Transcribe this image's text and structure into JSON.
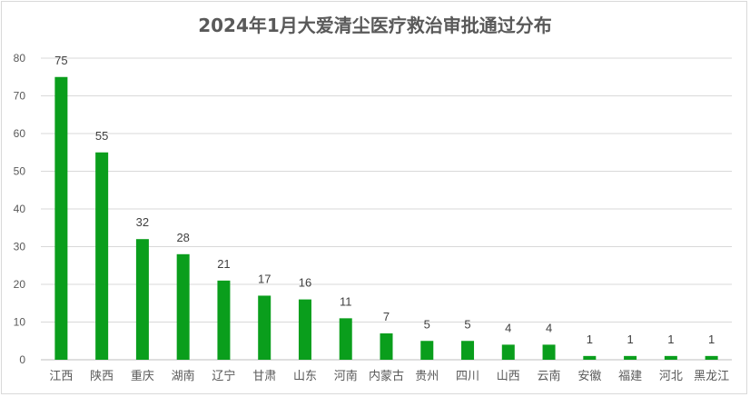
{
  "chart_data": {
    "type": "bar",
    "title": "2024年1月大爱清尘医疗救治审批通过分布",
    "categories": [
      "江西",
      "陕西",
      "重庆",
      "湖南",
      "辽宁",
      "甘肃",
      "山东",
      "河南",
      "内蒙古",
      "贵州",
      "四川",
      "山西",
      "云南",
      "安徽",
      "福建",
      "河北",
      "黑龙江"
    ],
    "values": [
      75,
      55,
      32,
      28,
      21,
      17,
      16,
      11,
      7,
      5,
      5,
      4,
      4,
      1,
      1,
      1,
      1
    ],
    "ylim": [
      0,
      80
    ],
    "yticks": [
      0,
      10,
      20,
      30,
      40,
      50,
      60,
      70,
      80
    ],
    "grid": true,
    "bar_color": "#0a9e1c",
    "xlabel": "",
    "ylabel": ""
  }
}
